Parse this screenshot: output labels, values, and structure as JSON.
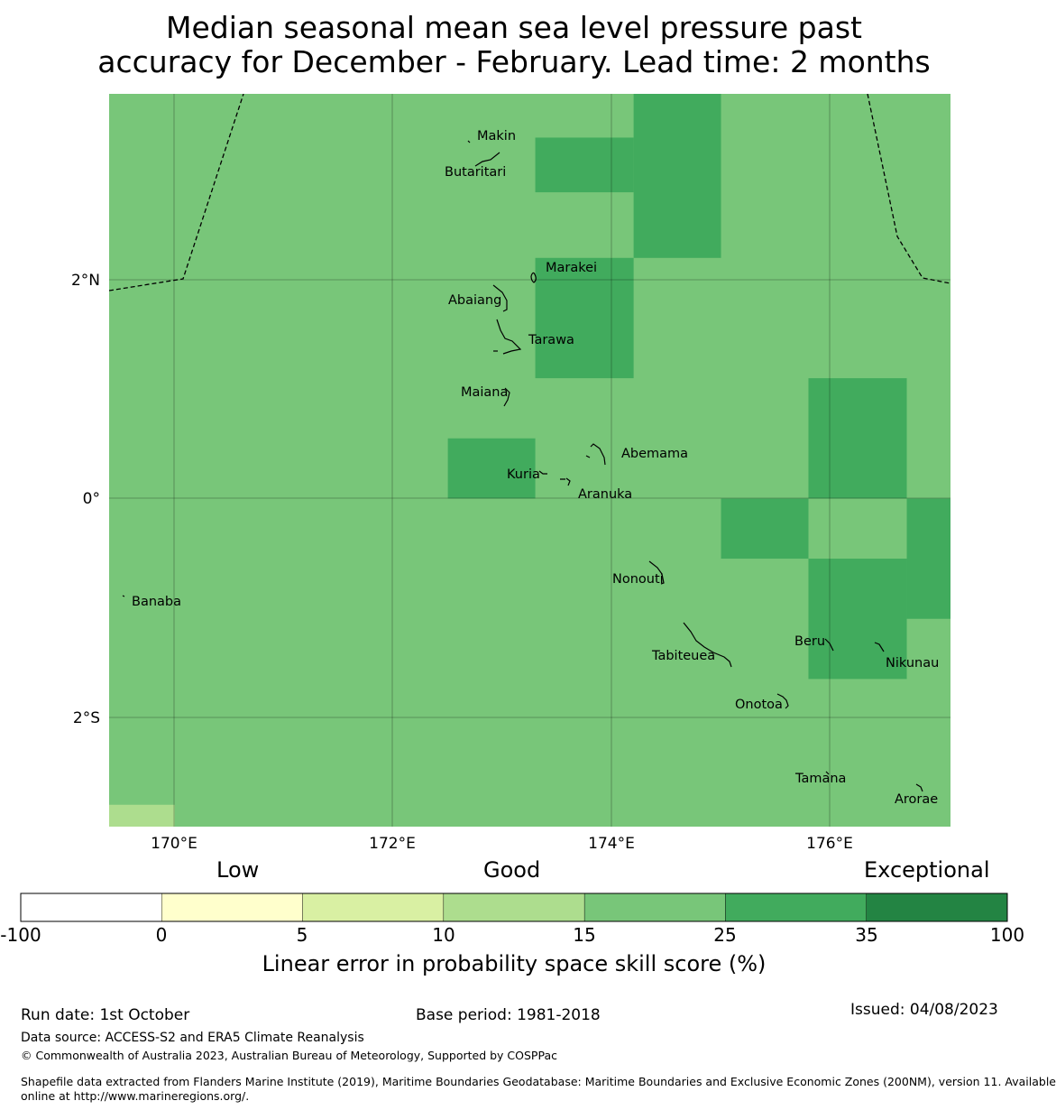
{
  "title": {
    "line1": "Median seasonal mean sea level pressure past",
    "line2": "accuracy for December - February. Lead time: 2 months"
  },
  "map": {
    "lon_range": [
      169.4,
      177.1
    ],
    "lat_range": [
      -3.0,
      3.7
    ],
    "x_ticks": [
      "170°E",
      "172°E",
      "174°E",
      "176°E"
    ],
    "y_ticks": [
      "2°N",
      "0°",
      "2°S"
    ],
    "islands": [
      {
        "name": "Makin"
      },
      {
        "name": "Butaritari"
      },
      {
        "name": "Marakei"
      },
      {
        "name": "Abaiang"
      },
      {
        "name": "Tarawa"
      },
      {
        "name": "Maiana"
      },
      {
        "name": "Abemama"
      },
      {
        "name": "Kuria"
      },
      {
        "name": "Aranuka"
      },
      {
        "name": "Banaba"
      },
      {
        "name": "Nonouti"
      },
      {
        "name": "Tabiteuea"
      },
      {
        "name": "Beru"
      },
      {
        "name": "Nikunau"
      },
      {
        "name": "Onotoa"
      },
      {
        "name": "Tamana"
      },
      {
        "name": "Arorae"
      }
    ],
    "background_category": "15 to 25",
    "cells": [
      {
        "lon": [
          174.2,
          175.0
        ],
        "lat": [
          2.2,
          3.7
        ],
        "category": "25 to 35"
      },
      {
        "lon": [
          173.3,
          174.2
        ],
        "lat": [
          2.8,
          3.3
        ],
        "category": "25 to 35"
      },
      {
        "lon": [
          173.3,
          174.2
        ],
        "lat": [
          1.1,
          2.2
        ],
        "category": "25 to 35"
      },
      {
        "lon": [
          172.5,
          173.3
        ],
        "lat": [
          0.0,
          0.55
        ],
        "category": "25 to 35"
      },
      {
        "lon": [
          175.8,
          176.7
        ],
        "lat": [
          0.0,
          1.1
        ],
        "category": "25 to 35"
      },
      {
        "lon": [
          175.0,
          175.8
        ],
        "lat": [
          -0.55,
          0.0
        ],
        "category": "25 to 35"
      },
      {
        "lon": [
          176.7,
          177.1
        ],
        "lat": [
          -1.1,
          0.0
        ],
        "category": "25 to 35"
      },
      {
        "lon": [
          175.8,
          176.7
        ],
        "lat": [
          -1.65,
          -0.55
        ],
        "category": "25 to 35"
      },
      {
        "lon": [
          169.4,
          170.0
        ],
        "lat": [
          -3.0,
          -2.8
        ],
        "category": "10 to 15"
      }
    ]
  },
  "legend": {
    "category_labels": [
      "Low",
      "Good",
      "Exceptional"
    ],
    "ticks": [
      "-100",
      "0",
      "5",
      "10",
      "15",
      "25",
      "35",
      "100"
    ],
    "colors": [
      "#ffffff",
      "#ffffcc",
      "#d9f0a3",
      "#addd8e",
      "#78c679",
      "#41ab5d",
      "#238443"
    ],
    "title": "Linear error in probability space skill score (%)"
  },
  "footer": {
    "run_date": "Run date: 1st October",
    "base_period": "Base period: 1981-2018",
    "issued": "Issued: 04/08/2023",
    "data_source": "Data source: ACCESS-S2 and ERA5 Climate Reanalysis",
    "copyright": "© Commonwealth of Australia 2023, Australian Bureau of Meteorology, Supported by COSPPac",
    "shapefile_line1": "Shapefile data extracted from Flanders Marine Institute (2019), Maritime Boundaries Geodatabase: Maritime Boundaries and Exclusive Economic Zones (200NM), version 11. Available",
    "shapefile_line2": "online at http://www.marineregions.org/."
  }
}
